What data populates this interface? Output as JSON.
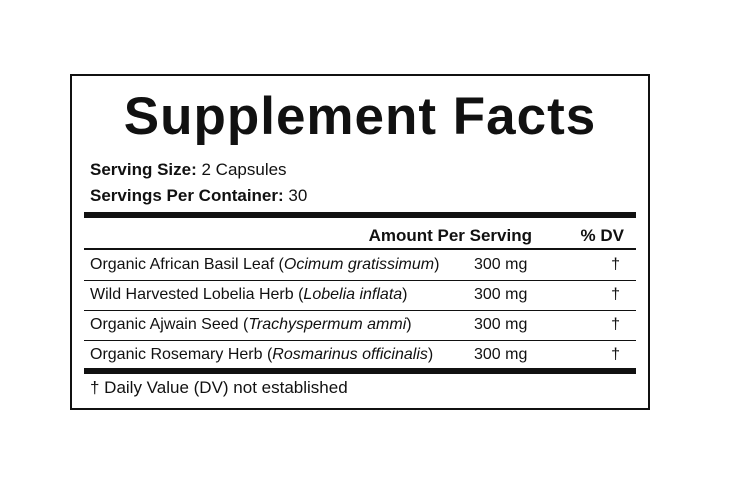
{
  "title": "Supplement Facts",
  "serving": [
    {
      "label": "Serving Size:",
      "value": "2 Capsules"
    },
    {
      "label": "Servings Per Container:",
      "value": "30"
    }
  ],
  "header": {
    "amount": "Amount Per Serving",
    "dv": "% DV"
  },
  "rows": [
    {
      "name": [
        "Organic African Basil Leaf (",
        "Ocimum gratissimum",
        ")"
      ],
      "amount": "300 mg",
      "dv": "†"
    },
    {
      "name": [
        "Wild Harvested Lobelia Herb (",
        "Lobelia inflata",
        ")"
      ],
      "amount": "300 mg",
      "dv": "†"
    },
    {
      "name": [
        "Organic Ajwain Seed (",
        "Trachyspermum ammi",
        ")"
      ],
      "amount": "300 mg",
      "dv": "†"
    },
    {
      "name": [
        "Organic Rosemary Herb (",
        "Rosmarinus officinalis",
        ")"
      ],
      "amount": "300 mg",
      "dv": "†"
    }
  ],
  "footnote": "† Daily Value (DV) not established"
}
